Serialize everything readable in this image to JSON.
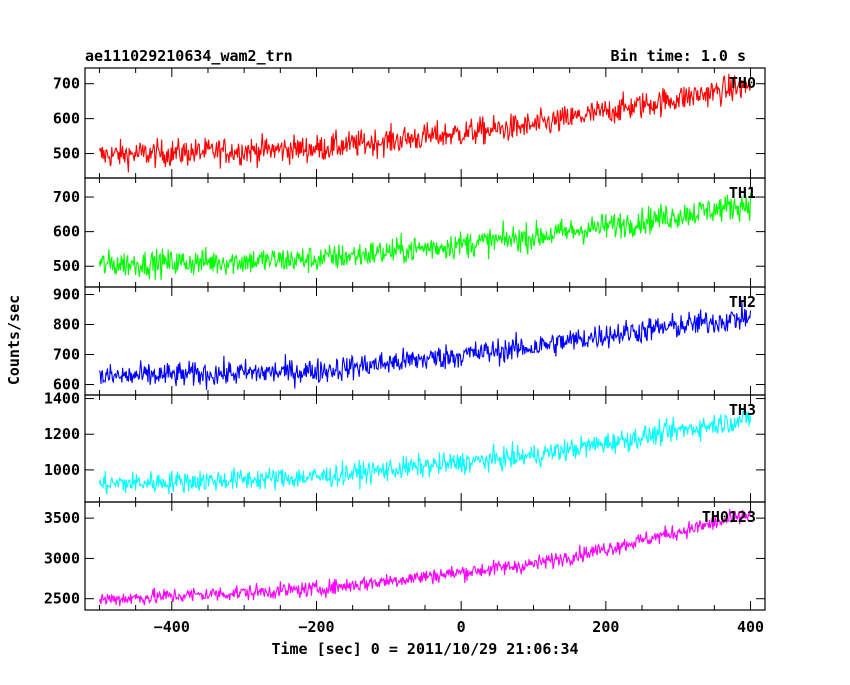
{
  "header": {
    "title": "ae111029210634_wam2_trn",
    "bin_time": "Bin time: 1.0 s"
  },
  "axes": {
    "ylabel": "Counts/sec",
    "xlabel": "Time [sec] 0 = 2011/10/29 21:06:34",
    "xlim": [
      -520,
      420
    ],
    "xticks": [
      -400,
      -200,
      0,
      200,
      400
    ]
  },
  "chart_data": {
    "type": "line",
    "x_range": [
      -500,
      400
    ],
    "series": [
      {
        "name": "TH0",
        "color": "#ff0000",
        "ylim": [
          430,
          745
        ],
        "yticks": [
          500,
          600,
          700
        ],
        "trend_x": [
          -500,
          -200,
          100,
          200,
          400
        ],
        "trend_y": [
          495,
          515,
          580,
          620,
          695
        ],
        "noise": 28
      },
      {
        "name": "TH1",
        "color": "#00ff00",
        "ylim": [
          440,
          755
        ],
        "yticks": [
          500,
          600,
          700
        ],
        "trend_x": [
          -500,
          -200,
          100,
          200,
          400
        ],
        "trend_y": [
          505,
          520,
          585,
          615,
          680
        ],
        "noise": 28
      },
      {
        "name": "TH2",
        "color": "#0000ff",
        "ylim": [
          565,
          925
        ],
        "yticks": [
          600,
          700,
          800,
          900
        ],
        "trend_x": [
          -500,
          -200,
          100,
          200,
          400
        ],
        "trend_y": [
          625,
          645,
          725,
          765,
          825
        ],
        "noise": 30
      },
      {
        "name": "TH3",
        "color": "#00ffff",
        "ylim": [
          820,
          1420
        ],
        "yticks": [
          1000,
          1200,
          1400
        ],
        "trend_x": [
          -500,
          -200,
          100,
          200,
          400
        ],
        "trend_y": [
          920,
          960,
          1080,
          1150,
          1290
        ],
        "noise": 45
      },
      {
        "name": "TH0123",
        "color": "#ff00ff",
        "ylim": [
          2360,
          3700
        ],
        "yticks": [
          2500,
          3000,
          3500
        ],
        "trend_x": [
          -500,
          -200,
          100,
          200,
          400
        ],
        "trend_y": [
          2490,
          2620,
          2930,
          3120,
          3540
        ],
        "noise": 70
      }
    ]
  }
}
